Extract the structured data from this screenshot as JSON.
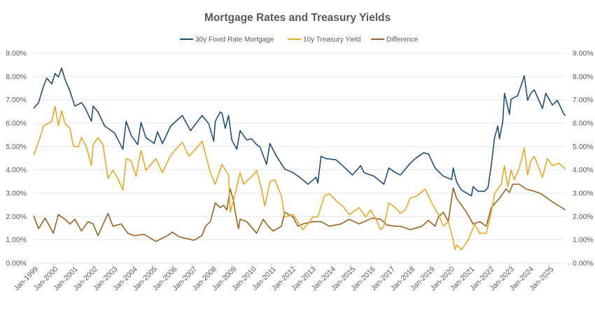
{
  "chart_data": {
    "type": "line",
    "title": "Mortgage Rates and Treasury Yields",
    "legend_position": "top",
    "grid": true,
    "ylim": [
      0,
      9
    ],
    "y_ticks": [
      "0.00%",
      "1.00%",
      "2.00%",
      "3.00%",
      "4.00%",
      "5.00%",
      "6.00%",
      "7.00%",
      "8.00%",
      "9.00%"
    ],
    "y_ticks_right": [
      "0.00%",
      "1.00%",
      "2.00%",
      "3.00%",
      "4.00%",
      "5.00%",
      "6.00%",
      "7.00%",
      "8.00%",
      "9.00%"
    ],
    "x_ticks": [
      "Jan-1999",
      "Jan-2000",
      "Jan-2001",
      "Jan-2002",
      "Jan-2003",
      "Jan-2004",
      "Jan-2005",
      "Jan-2006",
      "Jan-2007",
      "Jan-2008",
      "Jan-2009",
      "Jan-2010",
      "Jan-2011",
      "Jan-2012",
      "Jan-2013",
      "Jan-2014",
      "Jan-2015",
      "Jan-2016",
      "Jan-2017",
      "Jan-2018",
      "Jan-2019",
      "Jan-2020",
      "Jan-2021",
      "Jan-2022",
      "Jan-2023",
      "Jan-2024",
      "Jan-2025"
    ],
    "xlim": [
      "1999-01",
      "2025-11"
    ],
    "series": [
      {
        "name": "30y Fixed Rate Mortgage",
        "color": "#1f4e79",
        "points": [
          [
            "1999-01",
            6.63
          ],
          [
            "1999-04",
            6.88
          ],
          [
            "1999-07",
            7.58
          ],
          [
            "1999-09",
            7.93
          ],
          [
            "1999-12",
            7.68
          ],
          [
            "2000-02",
            8.13
          ],
          [
            "2000-04",
            7.98
          ],
          [
            "2000-06",
            8.36
          ],
          [
            "2000-08",
            7.88
          ],
          [
            "2000-11",
            7.38
          ],
          [
            "2001-02",
            6.73
          ],
          [
            "2001-06",
            6.88
          ],
          [
            "2001-08",
            6.68
          ],
          [
            "2001-12",
            6.08
          ],
          [
            "2002-01",
            6.73
          ],
          [
            "2002-04",
            6.48
          ],
          [
            "2002-08",
            5.88
          ],
          [
            "2003-02",
            5.58
          ],
          [
            "2003-07",
            4.88
          ],
          [
            "2003-09",
            6.08
          ],
          [
            "2003-12",
            5.48
          ],
          [
            "2004-04",
            5.08
          ],
          [
            "2004-06",
            6.03
          ],
          [
            "2004-09",
            5.38
          ],
          [
            "2005-02",
            5.13
          ],
          [
            "2005-04",
            5.63
          ],
          [
            "2005-07",
            5.13
          ],
          [
            "2005-12",
            5.88
          ],
          [
            "2006-07",
            6.33
          ],
          [
            "2006-12",
            5.68
          ],
          [
            "2007-07",
            6.33
          ],
          [
            "2007-11",
            5.98
          ],
          [
            "2008-02",
            5.23
          ],
          [
            "2008-03",
            6.08
          ],
          [
            "2008-06",
            6.48
          ],
          [
            "2008-07",
            6.43
          ],
          [
            "2008-09",
            5.78
          ],
          [
            "2008-11",
            6.33
          ],
          [
            "2009-01",
            5.28
          ],
          [
            "2009-04",
            4.88
          ],
          [
            "2009-06",
            5.68
          ],
          [
            "2009-10",
            5.28
          ],
          [
            "2010-01",
            5.33
          ],
          [
            "2010-04",
            5.08
          ],
          [
            "2010-06",
            4.98
          ],
          [
            "2010-10",
            4.23
          ],
          [
            "2010-12",
            5.13
          ],
          [
            "2011-04",
            4.58
          ],
          [
            "2011-09",
            4.03
          ],
          [
            "2012-02",
            3.88
          ],
          [
            "2012-07",
            3.63
          ],
          [
            "2012-11",
            3.38
          ],
          [
            "2013-04",
            3.68
          ],
          [
            "2013-05",
            3.43
          ],
          [
            "2013-07",
            4.58
          ],
          [
            "2013-10",
            4.48
          ],
          [
            "2014-04",
            4.43
          ],
          [
            "2014-08",
            4.18
          ],
          [
            "2015-02",
            3.78
          ],
          [
            "2015-07",
            4.18
          ],
          [
            "2015-09",
            3.88
          ],
          [
            "2016-03",
            3.73
          ],
          [
            "2016-09",
            3.38
          ],
          [
            "2016-12",
            4.08
          ],
          [
            "2017-04",
            3.88
          ],
          [
            "2017-07",
            3.78
          ],
          [
            "2018-01",
            4.28
          ],
          [
            "2018-04",
            4.48
          ],
          [
            "2018-09",
            4.73
          ],
          [
            "2018-12",
            4.68
          ],
          [
            "2019-04",
            4.08
          ],
          [
            "2019-09",
            3.73
          ],
          [
            "2020-02",
            3.58
          ],
          [
            "2020-03",
            4.08
          ],
          [
            "2020-05",
            3.48
          ],
          [
            "2020-08",
            3.13
          ],
          [
            "2021-02",
            2.88
          ],
          [
            "2021-03",
            3.28
          ],
          [
            "2021-06",
            3.08
          ],
          [
            "2021-10",
            3.08
          ],
          [
            "2021-12",
            3.23
          ],
          [
            "2022-02",
            4.18
          ],
          [
            "2022-04",
            5.38
          ],
          [
            "2022-06",
            5.88
          ],
          [
            "2022-07",
            5.33
          ],
          [
            "2022-09",
            6.08
          ],
          [
            "2022-10",
            7.28
          ],
          [
            "2023-01",
            6.38
          ],
          [
            "2023-02",
            7.03
          ],
          [
            "2023-06",
            7.18
          ],
          [
            "2023-10",
            8.03
          ],
          [
            "2023-12",
            6.98
          ],
          [
            "2024-02",
            7.28
          ],
          [
            "2024-04",
            7.43
          ],
          [
            "2024-09",
            6.63
          ],
          [
            "2024-11",
            7.28
          ],
          [
            "2025-03",
            6.78
          ],
          [
            "2025-06",
            6.98
          ],
          [
            "2025-10",
            6.38
          ],
          [
            "2025-11",
            6.33
          ]
        ]
      },
      {
        "name": "10y Treasury Yield",
        "color": "#e8a727",
        "points": [
          [
            "1999-01",
            4.63
          ],
          [
            "1999-04",
            5.18
          ],
          [
            "1999-07",
            5.88
          ],
          [
            "1999-12",
            6.08
          ],
          [
            "2000-02",
            6.73
          ],
          [
            "2000-04",
            5.88
          ],
          [
            "2000-06",
            6.53
          ],
          [
            "2000-08",
            5.98
          ],
          [
            "2000-11",
            5.78
          ],
          [
            "2001-01",
            5.03
          ],
          [
            "2001-04",
            4.98
          ],
          [
            "2001-06",
            5.38
          ],
          [
            "2001-09",
            4.98
          ],
          [
            "2001-12",
            4.18
          ],
          [
            "2002-01",
            5.08
          ],
          [
            "2002-04",
            5.38
          ],
          [
            "2002-07",
            5.08
          ],
          [
            "2002-10",
            3.63
          ],
          [
            "2003-01",
            3.98
          ],
          [
            "2003-04",
            3.63
          ],
          [
            "2003-07",
            3.13
          ],
          [
            "2003-09",
            4.48
          ],
          [
            "2003-12",
            4.38
          ],
          [
            "2004-03",
            3.73
          ],
          [
            "2004-06",
            4.83
          ],
          [
            "2004-09",
            3.98
          ],
          [
            "2005-03",
            4.48
          ],
          [
            "2005-07",
            3.88
          ],
          [
            "2005-12",
            4.63
          ],
          [
            "2006-07",
            5.18
          ],
          [
            "2006-11",
            4.58
          ],
          [
            "2007-03",
            4.88
          ],
          [
            "2007-07",
            5.23
          ],
          [
            "2007-12",
            3.88
          ],
          [
            "2008-03",
            3.38
          ],
          [
            "2008-07",
            4.23
          ],
          [
            "2008-11",
            3.78
          ],
          [
            "2008-12",
            2.18
          ],
          [
            "2009-03",
            2.98
          ],
          [
            "2009-06",
            3.88
          ],
          [
            "2009-08",
            3.38
          ],
          [
            "2010-02",
            3.78
          ],
          [
            "2010-04",
            3.98
          ],
          [
            "2010-07",
            3.18
          ],
          [
            "2010-09",
            2.43
          ],
          [
            "2010-12",
            3.48
          ],
          [
            "2011-03",
            3.58
          ],
          [
            "2011-07",
            2.88
          ],
          [
            "2011-09",
            1.98
          ],
          [
            "2012-02",
            2.08
          ],
          [
            "2012-05",
            1.78
          ],
          [
            "2012-08",
            1.43
          ],
          [
            "2012-11",
            1.68
          ],
          [
            "2013-02",
            1.98
          ],
          [
            "2013-05",
            1.98
          ],
          [
            "2013-09",
            2.88
          ],
          [
            "2013-12",
            2.98
          ],
          [
            "2014-04",
            2.68
          ],
          [
            "2014-09",
            2.38
          ],
          [
            "2014-12",
            2.08
          ],
          [
            "2015-06",
            2.38
          ],
          [
            "2015-10",
            1.98
          ],
          [
            "2016-01",
            2.28
          ],
          [
            "2016-05",
            1.78
          ],
          [
            "2016-07",
            1.43
          ],
          [
            "2016-09",
            1.58
          ],
          [
            "2016-12",
            2.58
          ],
          [
            "2017-04",
            2.38
          ],
          [
            "2017-07",
            2.13
          ],
          [
            "2017-10",
            2.28
          ],
          [
            "2018-01",
            2.78
          ],
          [
            "2018-05",
            2.88
          ],
          [
            "2018-10",
            3.18
          ],
          [
            "2019-02",
            2.58
          ],
          [
            "2019-06",
            2.08
          ],
          [
            "2019-09",
            1.58
          ],
          [
            "2019-12",
            1.78
          ],
          [
            "2020-03",
            1.0
          ],
          [
            "2020-04",
            0.58
          ],
          [
            "2020-05",
            0.78
          ],
          [
            "2020-08",
            0.58
          ],
          [
            "2020-12",
            0.98
          ],
          [
            "2021-04",
            1.68
          ],
          [
            "2021-07",
            1.28
          ],
          [
            "2021-11",
            1.28
          ],
          [
            "2022-02",
            2.18
          ],
          [
            "2022-04",
            2.98
          ],
          [
            "2022-08",
            3.38
          ],
          [
            "2022-10",
            4.18
          ],
          [
            "2022-12",
            3.28
          ],
          [
            "2023-02",
            3.98
          ],
          [
            "2023-04",
            3.58
          ],
          [
            "2023-07",
            4.08
          ],
          [
            "2023-10",
            4.93
          ],
          [
            "2023-12",
            3.78
          ],
          [
            "2024-02",
            4.38
          ],
          [
            "2024-04",
            4.58
          ],
          [
            "2024-09",
            3.68
          ],
          [
            "2024-12",
            4.48
          ],
          [
            "2025-03",
            4.18
          ],
          [
            "2025-07",
            4.28
          ],
          [
            "2025-11",
            4.03
          ]
        ]
      },
      {
        "name": "Difference",
        "color": "#9c6220",
        "points": [
          [
            "1999-01",
            2.03
          ],
          [
            "1999-04",
            1.48
          ],
          [
            "1999-08",
            1.93
          ],
          [
            "2000-01",
            1.28
          ],
          [
            "2000-04",
            2.08
          ],
          [
            "2000-08",
            1.88
          ],
          [
            "2000-11",
            1.68
          ],
          [
            "2001-02",
            1.88
          ],
          [
            "2001-06",
            1.38
          ],
          [
            "2001-10",
            1.78
          ],
          [
            "2002-01",
            1.68
          ],
          [
            "2002-04",
            1.18
          ],
          [
            "2002-10",
            2.13
          ],
          [
            "2003-01",
            1.58
          ],
          [
            "2003-06",
            1.68
          ],
          [
            "2003-10",
            1.28
          ],
          [
            "2004-02",
            1.18
          ],
          [
            "2004-08",
            1.23
          ],
          [
            "2005-03",
            0.93
          ],
          [
            "2005-10",
            1.18
          ],
          [
            "2006-01",
            1.33
          ],
          [
            "2006-05",
            1.13
          ],
          [
            "2007-02",
            0.98
          ],
          [
            "2007-07",
            1.18
          ],
          [
            "2007-09",
            1.58
          ],
          [
            "2007-12",
            1.78
          ],
          [
            "2008-03",
            2.58
          ],
          [
            "2008-06",
            2.38
          ],
          [
            "2008-08",
            2.48
          ],
          [
            "2008-10",
            2.28
          ],
          [
            "2008-12",
            3.18
          ],
          [
            "2009-02",
            2.68
          ],
          [
            "2009-03",
            2.18
          ],
          [
            "2009-05",
            1.48
          ],
          [
            "2009-06",
            1.88
          ],
          [
            "2009-10",
            1.78
          ],
          [
            "2010-04",
            1.28
          ],
          [
            "2010-08",
            1.88
          ],
          [
            "2010-11",
            1.58
          ],
          [
            "2011-02",
            1.38
          ],
          [
            "2011-07",
            1.58
          ],
          [
            "2011-09",
            2.18
          ],
          [
            "2012-02",
            1.98
          ],
          [
            "2012-05",
            1.58
          ],
          [
            "2012-08",
            1.68
          ],
          [
            "2013-02",
            1.78
          ],
          [
            "2013-07",
            1.78
          ],
          [
            "2013-12",
            1.58
          ],
          [
            "2014-07",
            1.68
          ],
          [
            "2014-12",
            1.88
          ],
          [
            "2015-06",
            1.68
          ],
          [
            "2016-02",
            1.93
          ],
          [
            "2016-07",
            1.88
          ],
          [
            "2016-11",
            1.63
          ],
          [
            "2017-04",
            1.58
          ],
          [
            "2017-07",
            1.58
          ],
          [
            "2018-01",
            1.43
          ],
          [
            "2018-08",
            1.58
          ],
          [
            "2018-12",
            1.83
          ],
          [
            "2019-04",
            1.58
          ],
          [
            "2019-06",
            1.98
          ],
          [
            "2019-09",
            2.18
          ],
          [
            "2019-12",
            1.78
          ],
          [
            "2020-03",
            3.23
          ],
          [
            "2020-05",
            2.78
          ],
          [
            "2020-11",
            2.18
          ],
          [
            "2021-03",
            1.68
          ],
          [
            "2021-07",
            1.78
          ],
          [
            "2021-11",
            1.58
          ],
          [
            "2022-02",
            2.38
          ],
          [
            "2022-07",
            2.78
          ],
          [
            "2022-11",
            3.18
          ],
          [
            "2023-01",
            3.03
          ],
          [
            "2023-03",
            3.38
          ],
          [
            "2023-07",
            3.38
          ],
          [
            "2023-11",
            3.18
          ],
          [
            "2024-04",
            3.08
          ],
          [
            "2024-08",
            2.98
          ],
          [
            "2024-12",
            2.78
          ],
          [
            "2025-04",
            2.58
          ],
          [
            "2025-11",
            2.28
          ]
        ]
      }
    ]
  }
}
